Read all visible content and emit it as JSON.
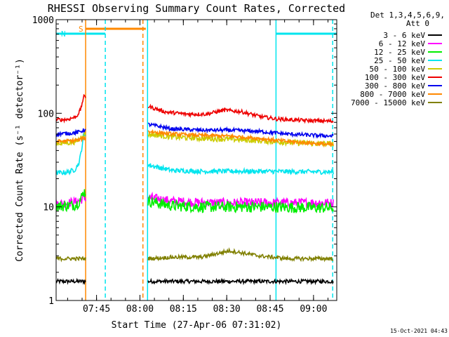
{
  "chart_data": {
    "type": "line",
    "title": "RHESSI Observing Summary Count Rates, Corrected",
    "xlabel": "Start Time (27-Apr-06 07:31:02)",
    "ylabel": "Corrected Count Rate (s⁻¹ detector⁻¹)",
    "y_scale": "log",
    "ylim": [
      1,
      1000
    ],
    "xlim_minutes": [
      0,
      97
    ],
    "x_ticks": [
      {
        "label": "07:45",
        "minute": 13.97
      },
      {
        "label": "08:00",
        "minute": 28.97
      },
      {
        "label": "08:15",
        "minute": 43.97
      },
      {
        "label": "08:30",
        "minute": 58.97
      },
      {
        "label": "08:45",
        "minute": 73.97
      },
      {
        "label": "09:00",
        "minute": 88.97
      }
    ],
    "y_ticks": [
      {
        "label": "1",
        "value": 1
      },
      {
        "label": "10",
        "value": 10
      },
      {
        "label": "100",
        "value": 100
      },
      {
        "label": "1000",
        "value": 1000
      }
    ],
    "legend_header": [
      "Det 1,3,4,5,6,9,",
      "Att 0"
    ],
    "legend_position": "right",
    "footer_date": "15-Oct-2021 04:43",
    "flags": [
      {
        "label": "S",
        "color": "#ff8800",
        "start_min": 10.2,
        "end_min": 31.0
      },
      {
        "label": "N",
        "color": "#00e5ee",
        "start_min": 0.0,
        "end_min": 17.0
      },
      {
        "label": "",
        "color": "#00e5ee",
        "start_min": 76.0,
        "end_min": 97.0
      }
    ],
    "vlines": [
      {
        "minute": 10.2,
        "color": "#ff8800",
        "style": "solid"
      },
      {
        "minute": 17.0,
        "color": "#00e5ee",
        "style": "dashed"
      },
      {
        "minute": 30.0,
        "color": "#ff8800",
        "style": "dashed"
      },
      {
        "minute": 31.6,
        "color": "#00e5ee",
        "style": "solid"
      },
      {
        "minute": 76.0,
        "color": "#00e5ee",
        "style": "solid"
      },
      {
        "minute": 95.6,
        "color": "#00e5ee",
        "style": "dashed"
      }
    ],
    "series": [
      {
        "name": "3 - 6 keV",
        "color": "#000000",
        "x": [
          0,
          8,
          9.5,
          32,
          40,
          50,
          60,
          70,
          80,
          90,
          96
        ],
        "y": [
          1.6,
          1.6,
          1.6,
          1.6,
          1.6,
          1.6,
          1.6,
          1.6,
          1.6,
          1.6,
          1.6
        ]
      },
      {
        "name": "6 - 12 keV",
        "color": "#ff00ff",
        "x": [
          0,
          4,
          7,
          8.5,
          9.5,
          32,
          40,
          50,
          60,
          70,
          80,
          90,
          96
        ],
        "y": [
          10.8,
          11.0,
          11.3,
          11.9,
          12.5,
          12.6,
          11.5,
          11.1,
          11.0,
          11.1,
          11.0,
          11.1,
          11.0
        ]
      },
      {
        "name": "12 - 25 keV",
        "color": "#00ee00",
        "x": [
          0,
          4,
          7,
          8.5,
          9.5,
          32,
          40,
          50,
          60,
          70,
          80,
          90,
          96
        ],
        "y": [
          10.2,
          10.3,
          10.6,
          12.0,
          14.5,
          11.5,
          10.3,
          10.0,
          10.0,
          10.0,
          9.9,
          9.8,
          9.8
        ]
      },
      {
        "name": "25 - 50 keV",
        "color": "#00e5ee",
        "x": [
          0,
          4,
          6.5,
          8,
          9,
          9.5,
          32,
          40,
          50,
          60,
          70,
          80,
          90,
          96
        ],
        "y": [
          23.0,
          23.5,
          25.0,
          30.0,
          45.0,
          60.0,
          28.0,
          24.5,
          24.0,
          24.0,
          24.0,
          23.8,
          23.7,
          23.6
        ]
      },
      {
        "name": "50 - 100 keV",
        "color": "#cccc00",
        "x": [
          0,
          4,
          7,
          8.5,
          9.5,
          32,
          40,
          50,
          60,
          70,
          80,
          90,
          96
        ],
        "y": [
          48.0,
          48.5,
          50.0,
          55.0,
          60.0,
          60.0,
          56.0,
          54.0,
          53.0,
          51.0,
          49.0,
          47.5,
          47.0
        ]
      },
      {
        "name": "100 - 300 keV",
        "color": "#ee0000",
        "x": [
          0,
          4,
          7,
          8.5,
          9.5,
          32,
          38,
          45,
          52,
          58,
          64,
          70,
          76,
          85,
          96
        ],
        "y": [
          85.0,
          86.0,
          92.0,
          110.0,
          150.0,
          118.0,
          103.0,
          98.0,
          98.0,
          108.0,
          104.0,
          93.0,
          87.0,
          84.0,
          82.0
        ]
      },
      {
        "name": "300 - 800 keV",
        "color": "#0000ee",
        "x": [
          0,
          4,
          7,
          8.5,
          9.5,
          32,
          40,
          50,
          60,
          70,
          80,
          90,
          96
        ],
        "y": [
          60.0,
          61.0,
          62.0,
          64.0,
          66.0,
          76.0,
          68.0,
          66.0,
          66.0,
          64.0,
          60.0,
          58.0,
          57.0
        ]
      },
      {
        "name": "800 - 7000 keV",
        "color": "#ff8800",
        "x": [
          0,
          4,
          7,
          8.5,
          9.5,
          32,
          40,
          50,
          60,
          70,
          80,
          90,
          96
        ],
        "y": [
          50.0,
          50.5,
          51.5,
          52.5,
          54.0,
          64.0,
          60.0,
          58.0,
          57.0,
          54.0,
          50.0,
          47.5,
          46.0
        ]
      },
      {
        "name": "7000 - 15000 keV",
        "color": "#808000",
        "x": [
          0,
          8,
          9.5,
          32,
          40,
          50,
          60,
          70,
          80,
          90,
          96
        ],
        "y": [
          2.8,
          2.8,
          2.8,
          2.8,
          2.9,
          2.9,
          3.4,
          3.0,
          2.8,
          2.8,
          2.8
        ]
      }
    ],
    "data_gaps_minutes": [
      [
        10.2,
        31.6
      ]
    ]
  }
}
